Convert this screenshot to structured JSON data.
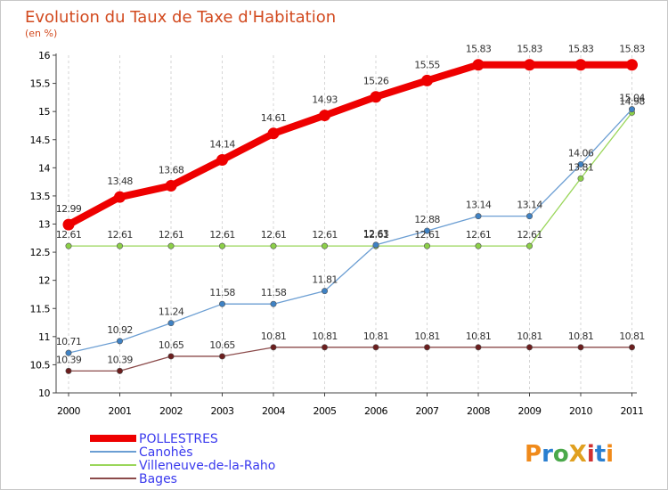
{
  "chart_data": {
    "type": "line",
    "title": "Evolution du Taux de Taxe d'Habitation",
    "subtitle": "(en %)",
    "x": [
      "2000",
      "2001",
      "2002",
      "2003",
      "2004",
      "2005",
      "2006",
      "2007",
      "2008",
      "2009",
      "2010",
      "2011"
    ],
    "ylim": [
      10,
      16
    ],
    "yticks": [
      "10",
      "10.5",
      "11",
      "11.5",
      "12",
      "12.5",
      "13",
      "13.5",
      "14",
      "14.5",
      "15",
      "15.5",
      "16"
    ],
    "grid": "vertical dashed",
    "legend_position": "bottom-left",
    "series": [
      {
        "name": "POLLESTRES",
        "color": "#ee0000",
        "values": [
          12.99,
          13.48,
          13.68,
          14.14,
          14.61,
          14.93,
          15.26,
          15.55,
          15.83,
          15.83,
          15.83,
          15.83
        ],
        "labels": [
          "12.99",
          "13.48",
          "13.68",
          "14.14",
          "14.61",
          "14.93",
          "15.26",
          "15.55",
          "15.83",
          "15.83",
          "15.83",
          "15.83"
        ]
      },
      {
        "name": "Canohès",
        "color": "#6b9ed3",
        "values": [
          10.71,
          10.92,
          11.24,
          11.58,
          11.58,
          11.81,
          12.63,
          12.88,
          13.14,
          13.14,
          14.06,
          15.04
        ],
        "labels": [
          "10.71",
          "10.92",
          "11.24",
          "11.58",
          "11.58",
          "11.81",
          "12.63",
          "12.88",
          "13.14",
          "13.14",
          "14.06",
          "15.04"
        ]
      },
      {
        "name": "Villeneuve-de-la-Raho",
        "color": "#9ad65a",
        "values": [
          12.61,
          12.61,
          12.61,
          12.61,
          12.61,
          12.61,
          12.61,
          12.61,
          12.61,
          12.61,
          13.81,
          14.98
        ],
        "labels": [
          "12.61",
          "12.61",
          "12.61",
          "12.61",
          "12.61",
          "12.61",
          "12.61",
          "12.61",
          "12.61",
          "12.61",
          "13.81",
          "14.98"
        ]
      },
      {
        "name": "Bages",
        "color": "#8b4a4a",
        "values": [
          10.39,
          10.39,
          10.65,
          10.65,
          10.81,
          10.81,
          10.81,
          10.81,
          10.81,
          10.81,
          10.81,
          10.81
        ],
        "labels": [
          "10.39",
          "10.39",
          "10.65",
          "10.65",
          "10.81",
          "10.81",
          "10.81",
          "10.81",
          "10.81",
          "10.81",
          "10.81",
          "10.81"
        ]
      }
    ]
  },
  "logo_text": "ProXiti"
}
